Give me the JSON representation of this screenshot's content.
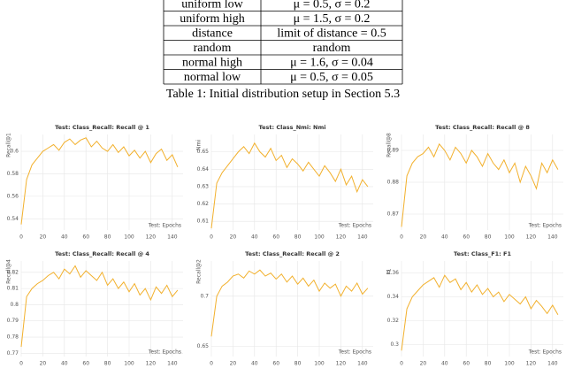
{
  "table": {
    "rows": [
      [
        "uniform low",
        "μ = 0.5, σ = 0.2"
      ],
      [
        "uniform high",
        "μ = 1.5, σ = 0.2"
      ],
      [
        "distance",
        "limit of distance = 0.5"
      ],
      [
        "random",
        "random"
      ],
      [
        "normal high",
        "μ = 1.6, σ = 0.04"
      ],
      [
        "normal low",
        "μ = 0.5, σ = 0.05"
      ]
    ]
  },
  "caption": "Table 1: Initial distribution setup in Section 5.3",
  "chart_data": [
    {
      "type": "line",
      "title": "Test: Class_Recall: Recall @ 1",
      "y_label": "Recall@1",
      "x_label": "Test: Epochs",
      "x": [
        0,
        5,
        10,
        15,
        20,
        25,
        30,
        35,
        40,
        45,
        50,
        55,
        60,
        65,
        70,
        75,
        80,
        85,
        90,
        95,
        100,
        105,
        110,
        115,
        120,
        125,
        130,
        135,
        140,
        145
      ],
      "xlim": [
        0,
        150
      ],
      "xticks": [
        0,
        20,
        40,
        60,
        80,
        100,
        120,
        140
      ],
      "ylim": [
        0.53,
        0.615
      ],
      "yticks": [
        0.54,
        0.56,
        0.58,
        0.6
      ],
      "grid": true,
      "series": [
        {
          "color": "#f2b02c",
          "values": [
            0.535,
            0.575,
            0.588,
            0.594,
            0.6,
            0.603,
            0.606,
            0.601,
            0.608,
            0.611,
            0.606,
            0.61,
            0.612,
            0.604,
            0.609,
            0.603,
            0.6,
            0.606,
            0.599,
            0.604,
            0.596,
            0.601,
            0.594,
            0.6,
            0.59,
            0.598,
            0.602,
            0.592,
            0.597,
            0.586
          ]
        }
      ]
    },
    {
      "type": "line",
      "title": "Test: Class_Nmi: Nmi",
      "y_label": "Nmi",
      "x_label": "Test: Epochs",
      "x": [
        0,
        5,
        10,
        15,
        20,
        25,
        30,
        35,
        40,
        45,
        50,
        55,
        60,
        65,
        70,
        75,
        80,
        85,
        90,
        95,
        100,
        105,
        110,
        115,
        120,
        125,
        130,
        135,
        140,
        145
      ],
      "xlim": [
        0,
        150
      ],
      "xticks": [
        0,
        20,
        40,
        60,
        80,
        100,
        120,
        140
      ],
      "ylim": [
        0.605,
        0.66
      ],
      "yticks": [
        0.61,
        0.62,
        0.63,
        0.64,
        0.65
      ],
      "grid": true,
      "series": [
        {
          "color": "#f2b02c",
          "values": [
            0.606,
            0.632,
            0.638,
            0.642,
            0.646,
            0.65,
            0.653,
            0.649,
            0.655,
            0.65,
            0.647,
            0.652,
            0.645,
            0.648,
            0.641,
            0.646,
            0.643,
            0.639,
            0.644,
            0.64,
            0.636,
            0.642,
            0.638,
            0.633,
            0.64,
            0.631,
            0.636,
            0.627,
            0.634,
            0.63
          ]
        }
      ]
    },
    {
      "type": "line",
      "title": "Test: Class_Recall: Recall @ 8",
      "y_label": "Recall@8",
      "x_label": "Test: Epochs",
      "x": [
        0,
        5,
        10,
        15,
        20,
        25,
        30,
        35,
        40,
        45,
        50,
        55,
        60,
        65,
        70,
        75,
        80,
        85,
        90,
        95,
        100,
        105,
        110,
        115,
        120,
        125,
        130,
        135,
        140,
        145
      ],
      "xlim": [
        0,
        150
      ],
      "xticks": [
        0,
        20,
        40,
        60,
        80,
        100,
        120,
        140
      ],
      "ylim": [
        0.865,
        0.895
      ],
      "yticks": [
        0.87,
        0.88,
        0.89
      ],
      "grid": true,
      "series": [
        {
          "color": "#f2b02c",
          "values": [
            0.866,
            0.882,
            0.886,
            0.888,
            0.889,
            0.891,
            0.888,
            0.892,
            0.89,
            0.887,
            0.891,
            0.889,
            0.886,
            0.89,
            0.888,
            0.885,
            0.889,
            0.886,
            0.884,
            0.887,
            0.883,
            0.886,
            0.88,
            0.885,
            0.882,
            0.878,
            0.886,
            0.883,
            0.887,
            0.884
          ]
        }
      ]
    },
    {
      "type": "line",
      "title": "Test: Class_Recall: Recall @ 4",
      "y_label": "Recall@4",
      "x_label": "Test: Epochs",
      "x": [
        0,
        5,
        10,
        15,
        20,
        25,
        30,
        35,
        40,
        45,
        50,
        55,
        60,
        65,
        70,
        75,
        80,
        85,
        90,
        95,
        100,
        105,
        110,
        115,
        120,
        125,
        130,
        135,
        140,
        145
      ],
      "xlim": [
        0,
        150
      ],
      "xticks": [
        0,
        20,
        40,
        60,
        80,
        100,
        120,
        140
      ],
      "ylim": [
        0.768,
        0.827
      ],
      "yticks": [
        0.77,
        0.78,
        0.79,
        0.8,
        0.81,
        0.82
      ],
      "grid": true,
      "series": [
        {
          "color": "#f2b02c",
          "values": [
            0.774,
            0.805,
            0.81,
            0.813,
            0.815,
            0.818,
            0.82,
            0.816,
            0.822,
            0.819,
            0.824,
            0.817,
            0.821,
            0.818,
            0.815,
            0.82,
            0.812,
            0.816,
            0.81,
            0.814,
            0.808,
            0.813,
            0.806,
            0.81,
            0.803,
            0.811,
            0.807,
            0.812,
            0.805,
            0.809
          ]
        }
      ]
    },
    {
      "type": "line",
      "title": "Test: Class_Recall: Recall @ 2",
      "y_label": "Recall@2",
      "x_label": "Test: Epochs",
      "x": [
        0,
        5,
        10,
        15,
        20,
        25,
        30,
        35,
        40,
        45,
        50,
        55,
        60,
        65,
        70,
        75,
        80,
        85,
        90,
        95,
        100,
        105,
        110,
        115,
        120,
        125,
        130,
        135,
        140,
        145
      ],
      "xlim": [
        0,
        150
      ],
      "xticks": [
        0,
        20,
        40,
        60,
        80,
        100,
        120,
        140
      ],
      "ylim": [
        0.64,
        0.735
      ],
      "yticks": [
        0.65,
        0.7
      ],
      "grid": true,
      "series": [
        {
          "color": "#f2b02c",
          "values": [
            0.66,
            0.7,
            0.71,
            0.714,
            0.72,
            0.722,
            0.718,
            0.725,
            0.722,
            0.726,
            0.72,
            0.723,
            0.717,
            0.722,
            0.714,
            0.72,
            0.712,
            0.718,
            0.71,
            0.716,
            0.705,
            0.713,
            0.708,
            0.712,
            0.7,
            0.71,
            0.705,
            0.713,
            0.702,
            0.708
          ]
        }
      ]
    },
    {
      "type": "line",
      "title": "Test: Class_F1: F1",
      "y_label": "F1",
      "x_label": "Test: Epochs",
      "x": [
        0,
        5,
        10,
        15,
        20,
        25,
        30,
        35,
        40,
        45,
        50,
        55,
        60,
        65,
        70,
        75,
        80,
        85,
        90,
        95,
        100,
        105,
        110,
        115,
        120,
        125,
        130,
        135,
        140,
        145
      ],
      "xlim": [
        0,
        150
      ],
      "xticks": [
        0,
        20,
        40,
        60,
        80,
        100,
        120,
        140
      ],
      "ylim": [
        0.29,
        0.37
      ],
      "yticks": [
        0.3,
        0.32,
        0.34,
        0.36
      ],
      "grid": true,
      "series": [
        {
          "color": "#f2b02c",
          "values": [
            0.295,
            0.33,
            0.34,
            0.345,
            0.35,
            0.353,
            0.356,
            0.348,
            0.358,
            0.352,
            0.355,
            0.346,
            0.352,
            0.344,
            0.35,
            0.342,
            0.347,
            0.34,
            0.344,
            0.336,
            0.342,
            0.338,
            0.334,
            0.34,
            0.33,
            0.337,
            0.332,
            0.326,
            0.333,
            0.325
          ]
        }
      ]
    }
  ]
}
